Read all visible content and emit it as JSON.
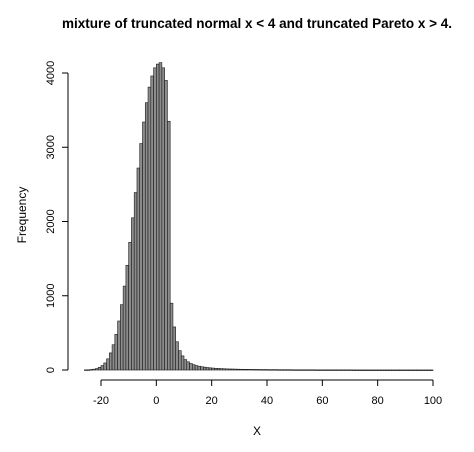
{
  "chart_data": {
    "type": "bar",
    "title": "mixture of truncated normal x < 4 and truncated Pareto x > 4.",
    "xlabel": "X",
    "ylabel": "Frequency",
    "xlim": [
      -26,
      100
    ],
    "ylim": [
      0,
      4200
    ],
    "bin_width": 1,
    "x_ticks": [
      -20,
      0,
      20,
      40,
      60,
      80,
      100
    ],
    "y_ticks": [
      0,
      1000,
      2000,
      3000,
      4000
    ],
    "grid": false,
    "legend": "none",
    "bar_color": "#8c8c8c",
    "bin_starts": [
      -26,
      -25,
      -24,
      -23,
      -22,
      -21,
      -20,
      -19,
      -18,
      -17,
      -16,
      -15,
      -14,
      -13,
      -12,
      -11,
      -10,
      -9,
      -8,
      -7,
      -6,
      -5,
      -4,
      -3,
      -2,
      -1,
      0,
      1,
      2,
      3,
      4,
      5,
      6,
      7,
      8,
      9,
      10,
      11,
      12,
      13,
      14,
      15,
      16,
      17,
      18,
      19,
      20,
      21,
      22,
      23,
      24,
      25,
      26,
      27,
      28,
      29,
      30,
      31,
      32,
      33,
      34,
      35,
      36,
      37,
      38,
      39,
      40,
      41,
      42,
      43,
      44,
      45,
      46,
      47,
      48,
      49,
      50,
      51,
      52,
      53,
      54,
      55,
      56,
      57,
      58,
      59,
      60,
      61,
      62,
      63,
      64,
      65,
      66,
      67,
      68,
      69,
      70,
      71,
      72,
      73,
      74,
      75,
      76,
      77,
      78,
      79,
      80,
      81,
      82,
      83,
      84,
      85,
      86,
      87,
      88,
      89,
      90,
      91,
      92,
      93,
      94,
      95,
      96,
      97,
      98,
      99
    ],
    "values": [
      2,
      3,
      6,
      11,
      20,
      36,
      60,
      95,
      150,
      230,
      340,
      480,
      660,
      880,
      1130,
      1410,
      1720,
      2050,
      2390,
      2720,
      3050,
      3340,
      3600,
      3810,
      3960,
      4070,
      4120,
      4140,
      4070,
      3900,
      3350,
      900,
      580,
      380,
      260,
      190,
      140,
      110,
      88,
      72,
      60,
      51,
      44,
      38,
      33,
      29,
      26,
      23,
      21,
      19,
      17,
      15,
      14,
      13,
      12,
      11,
      10,
      9,
      9,
      8,
      8,
      7,
      7,
      6,
      6,
      6,
      5,
      5,
      5,
      5,
      4,
      4,
      4,
      4,
      4,
      3,
      3,
      3,
      3,
      3,
      3,
      3,
      3,
      2,
      2,
      2,
      2,
      2,
      2,
      2,
      2,
      2,
      2,
      2,
      2,
      2,
      2,
      1,
      1,
      1,
      1,
      1,
      1,
      1,
      1,
      1,
      1,
      1,
      1,
      1,
      1,
      1,
      1,
      1,
      1,
      1,
      1,
      1,
      1,
      1,
      1,
      1,
      1,
      1,
      1,
      1
    ]
  }
}
